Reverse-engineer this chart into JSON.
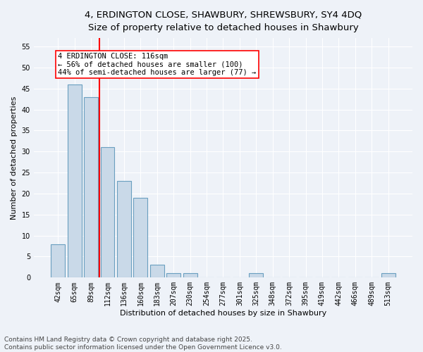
{
  "title_line1": "4, ERDINGTON CLOSE, SHAWBURY, SHREWSBURY, SY4 4DQ",
  "title_line2": "Size of property relative to detached houses in Shawbury",
  "categories": [
    "42sqm",
    "65sqm",
    "89sqm",
    "112sqm",
    "136sqm",
    "160sqm",
    "183sqm",
    "207sqm",
    "230sqm",
    "254sqm",
    "277sqm",
    "301sqm",
    "325sqm",
    "348sqm",
    "372sqm",
    "395sqm",
    "419sqm",
    "442sqm",
    "466sqm",
    "489sqm",
    "513sqm"
  ],
  "values": [
    8,
    46,
    43,
    31,
    23,
    19,
    3,
    1,
    1,
    0,
    0,
    0,
    1,
    0,
    0,
    0,
    0,
    0,
    0,
    0,
    1
  ],
  "bar_color": "#c9d9e8",
  "bar_edge_color": "#6a9fc0",
  "vline_index": 2.5,
  "vline_color": "red",
  "xlabel": "Distribution of detached houses by size in Shawbury",
  "ylabel": "Number of detached properties",
  "ylim_max": 57,
  "yticks": [
    0,
    5,
    10,
    15,
    20,
    25,
    30,
    35,
    40,
    45,
    50,
    55
  ],
  "annotation_text": "4 ERDINGTON CLOSE: 116sqm\n← 56% of detached houses are smaller (100)\n44% of semi-detached houses are larger (77) →",
  "annotation_box_color": "white",
  "annotation_box_edge": "red",
  "footer_text": "Contains HM Land Registry data © Crown copyright and database right 2025.\nContains public sector information licensed under the Open Government Licence v3.0.",
  "background_color": "#eef2f8",
  "grid_color": "white",
  "title_fontsize": 9.5,
  "subtitle_fontsize": 9,
  "axis_label_fontsize": 8,
  "tick_fontsize": 7,
  "annotation_fontsize": 7.5,
  "footer_fontsize": 6.5
}
